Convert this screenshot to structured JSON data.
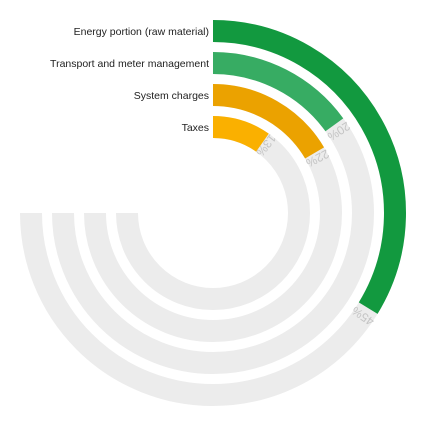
{
  "chart_data": {
    "type": "radial-bar",
    "title": "",
    "series": [
      {
        "name": "Energy portion (raw material)",
        "value": 45,
        "label": "45%",
        "color": "#12993f"
      },
      {
        "name": "Transport and meter management",
        "value": 20,
        "label": "20%",
        "color": "#37ac63"
      },
      {
        "name": "System charges",
        "value": 22,
        "label": "22%",
        "color": "#eba200"
      },
      {
        "name": "Taxes",
        "value": 13,
        "label": "13%",
        "color": "#fab000"
      }
    ],
    "value_range": [
      0,
      100
    ],
    "track_color": "#ececec",
    "track_sweep_degrees": 270,
    "legend": "left of arc starts",
    "grid": false
  }
}
